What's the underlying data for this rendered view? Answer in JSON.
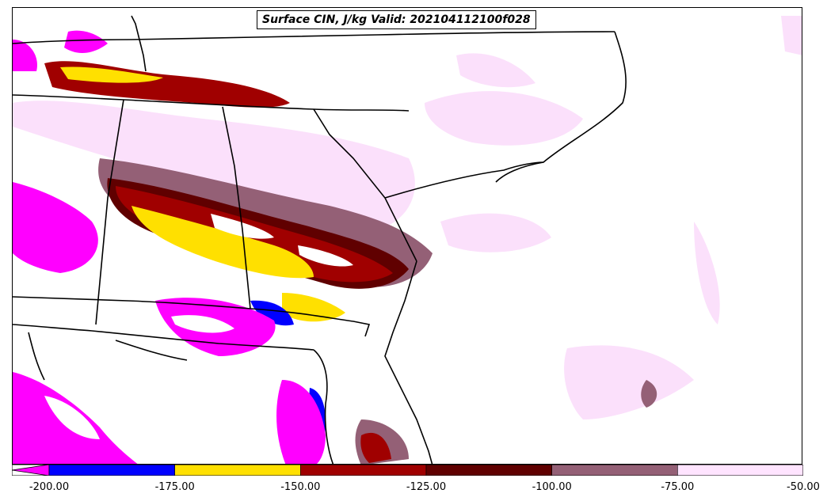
{
  "title": "Surface CIN, J/kg Valid: 202104112100f028",
  "colorbar": {
    "min": -200,
    "max": -50,
    "extend": "min",
    "bins": [
      {
        "from": -200,
        "to": -175,
        "color": "#0000ff"
      },
      {
        "from": -175,
        "to": -150,
        "color": "#ffe000"
      },
      {
        "from": -150,
        "to": -125,
        "color": "#a00000"
      },
      {
        "from": -125,
        "to": -100,
        "color": "#600000"
      },
      {
        "from": -100,
        "to": -75,
        "color": "#946076"
      },
      {
        "from": -75,
        "to": -50,
        "color": "#ffe4ff"
      }
    ],
    "under_color": "#ff00ff",
    "tick_labels": [
      "-200.00",
      "-175.00",
      "-150.00",
      "-125.00",
      "-100.00",
      "-75.00",
      "-50.00"
    ]
  }
}
